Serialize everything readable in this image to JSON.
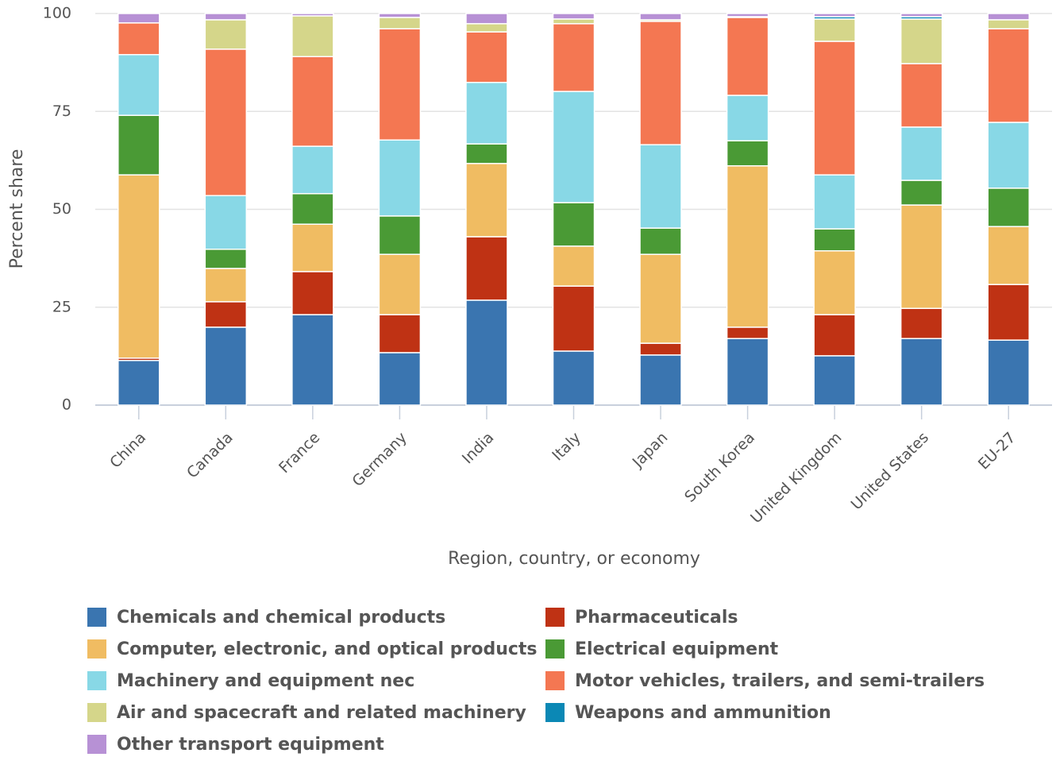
{
  "chart_data": {
    "type": "stacked_bar",
    "x_label": "Region, country, or economy",
    "y_label": "Percent share",
    "categories": [
      "China",
      "Canada",
      "France",
      "Germany",
      "India",
      "Italy",
      "Japan",
      "South Korea",
      "United Kingdom",
      "United States",
      "EU-27"
    ],
    "ylim": [
      0,
      100
    ],
    "yticks": [
      0,
      25,
      50,
      75,
      100
    ],
    "grid": true,
    "legend": "bottom",
    "series": [
      {
        "name": "Chemicals and chemical products",
        "color": "#3a75b0",
        "values": [
          11.4,
          19.9,
          23.1,
          13.4,
          26.8,
          13.8,
          12.8,
          17.0,
          12.6,
          17.0,
          16.6
        ]
      },
      {
        "name": "Pharmaceuticals",
        "color": "#bf3214",
        "values": [
          0.6,
          6.5,
          11.0,
          9.7,
          16.2,
          16.6,
          3.0,
          2.9,
          10.5,
          7.7,
          14.2
        ]
      },
      {
        "name": "Computer, electronic, and optical products",
        "color": "#f0bc62",
        "values": [
          46.8,
          8.5,
          12.1,
          15.4,
          18.7,
          10.2,
          22.7,
          41.2,
          16.3,
          26.4,
          14.8
        ]
      },
      {
        "name": "Electrical equipment",
        "color": "#4a9a35",
        "values": [
          15.2,
          4.9,
          7.8,
          9.8,
          5.0,
          11.1,
          6.7,
          6.4,
          5.6,
          6.3,
          9.8
        ]
      },
      {
        "name": "Machinery and equipment nec",
        "color": "#88d8e6",
        "values": [
          15.5,
          13.7,
          12.1,
          19.4,
          15.7,
          28.4,
          21.3,
          11.6,
          13.8,
          13.6,
          16.8
        ]
      },
      {
        "name": "Motor vehicles, trailers, and semi-trailers",
        "color": "#f47752",
        "values": [
          8.1,
          37.4,
          22.9,
          28.4,
          12.9,
          17.3,
          31.5,
          19.9,
          34.1,
          16.2,
          23.9
        ]
      },
      {
        "name": "Air and spacecraft and related machinery",
        "color": "#d5d68a",
        "values": [
          0,
          7.5,
          10.4,
          2.9,
          2.1,
          1.2,
          0.4,
          0.2,
          5.7,
          11.4,
          2.3
        ]
      },
      {
        "name": "Weapons and ammunition",
        "color": "#0b88b5",
        "values": [
          0,
          0,
          0,
          0,
          0,
          0,
          0,
          0,
          0.6,
          0.6,
          0
        ]
      },
      {
        "name": "Other transport equipment",
        "color": "#b791d5",
        "values": [
          2.4,
          1.6,
          0.6,
          1.0,
          2.6,
          1.4,
          1.6,
          0.8,
          0.8,
          0.8,
          1.6
        ]
      }
    ]
  }
}
